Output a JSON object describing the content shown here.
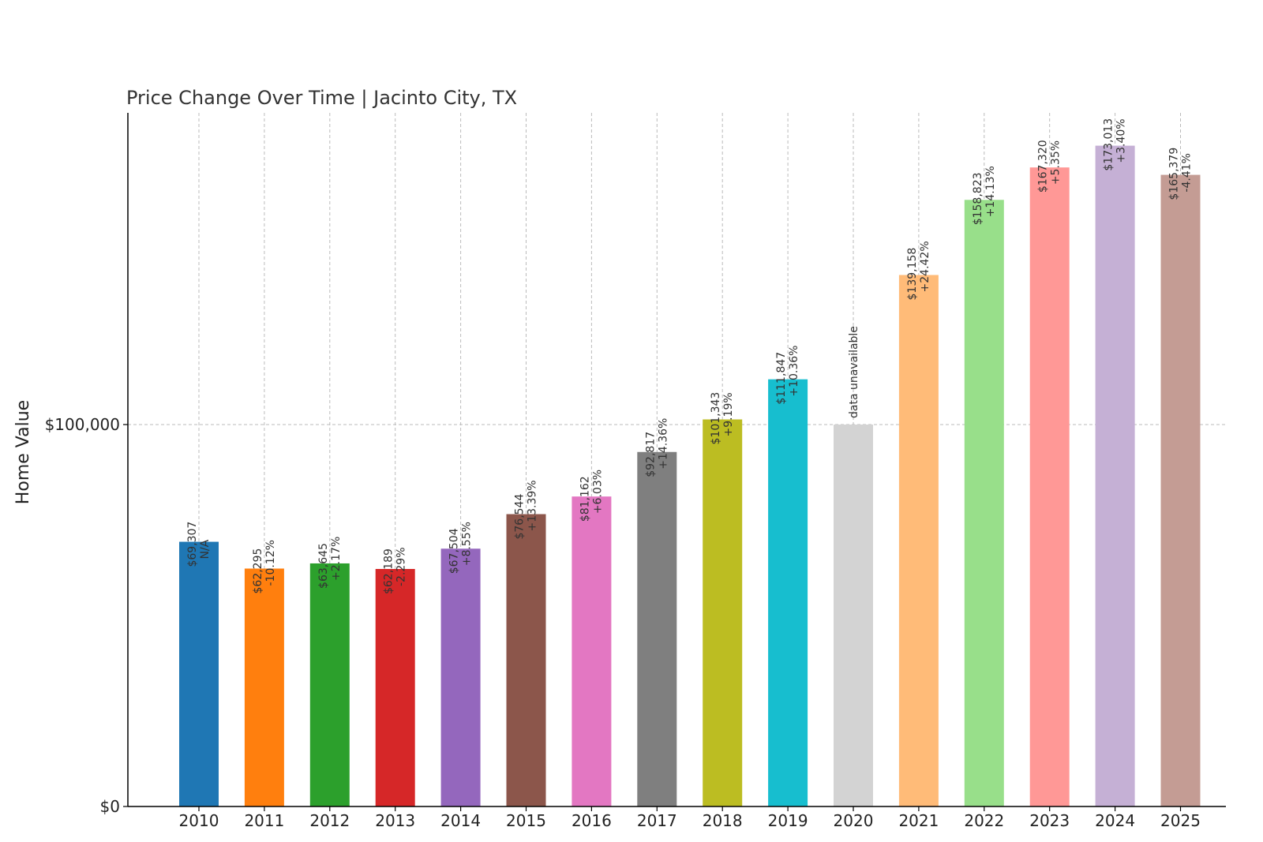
{
  "chart_data": {
    "type": "bar",
    "title": "Price Change Over Time | Jacinto City, TX",
    "xlabel": "",
    "ylabel": "Home Value",
    "ylim": [
      0,
      180000
    ],
    "yticks": [
      {
        "value": 0,
        "label": "$0"
      },
      {
        "value": 100000,
        "label": "$100,000"
      }
    ],
    "grid": true,
    "categories": [
      "2010",
      "2011",
      "2012",
      "2013",
      "2014",
      "2015",
      "2016",
      "2017",
      "2018",
      "2019",
      "2020",
      "2021",
      "2022",
      "2023",
      "2024",
      "2025"
    ],
    "values": [
      69307,
      62295,
      63645,
      62189,
      67504,
      76544,
      81162,
      92817,
      101343,
      111847,
      100000,
      139158,
      158823,
      167320,
      173013,
      165379
    ],
    "price_labels": [
      "$69,307",
      "$62,295",
      "$63,645",
      "$62,189",
      "$67,504",
      "$76,544",
      "$81,162",
      "$92,817",
      "$101,343",
      "$111,847",
      "",
      "$139,158",
      "$158,823",
      "$167,320",
      "$173,013",
      "$165,379"
    ],
    "change_labels": [
      "N/A",
      "-10.12%",
      "+2.17%",
      "-2.29%",
      "+8.55%",
      "+13.39%",
      "+6.03%",
      "+14.36%",
      "+9.19%",
      "+10.36%",
      "",
      "+24.42%",
      "+14.13%",
      "+5.35%",
      "+3.40%",
      "-4.41%"
    ],
    "unavailable_label": "data unavailable",
    "colors": [
      "#1f77b4",
      "#ff7f0e",
      "#2ca02c",
      "#d62728",
      "#9467bd",
      "#8c564b",
      "#e377c2",
      "#7f7f7f",
      "#bcbd22",
      "#17becf",
      "#d3d3d3",
      "#ffbb78",
      "#98df8a",
      "#ff9896",
      "#c5b0d5",
      "#c49c94"
    ]
  }
}
